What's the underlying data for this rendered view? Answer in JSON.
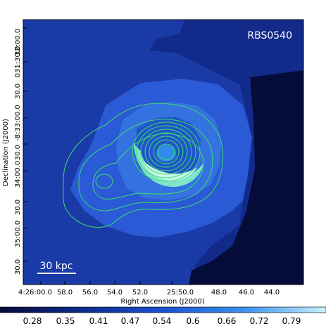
{
  "figure": {
    "object_label": "RBS0540",
    "scale_bar_label": "30 kpc",
    "y_axis_title": "Declination (J2000)",
    "x_axis_title": "Right Ascension (J2000)",
    "y_ticks": [
      "-8:33:00.0",
      "30.0",
      "34:00.0",
      "30.0",
      "35:00.0",
      "30.0",
      "32:00.0",
      "30.0",
      "031:30.0",
      "32:00.0"
    ],
    "x_ticks": [
      "4:26:00.0",
      "58.0",
      "56.0",
      "54.0",
      "52.0",
      "25:50.0",
      "48.0",
      "46.0",
      "44.0"
    ],
    "colorbar_ticks": [
      "0.28",
      "0.35",
      "0.41",
      "0.47",
      "0.54",
      "0.6",
      "0.66",
      "0.72",
      "0.79"
    ]
  },
  "colors": {
    "outer_dark": "#0a1a5e",
    "outer_mid": "#1a3aa8",
    "plateau": "#2a5ad6",
    "inner": "#3472e0",
    "core": "#2f8be8",
    "bright": "#7fe6cc",
    "brightest": "#c8f8e6",
    "contour": "#3ddc6a"
  }
}
